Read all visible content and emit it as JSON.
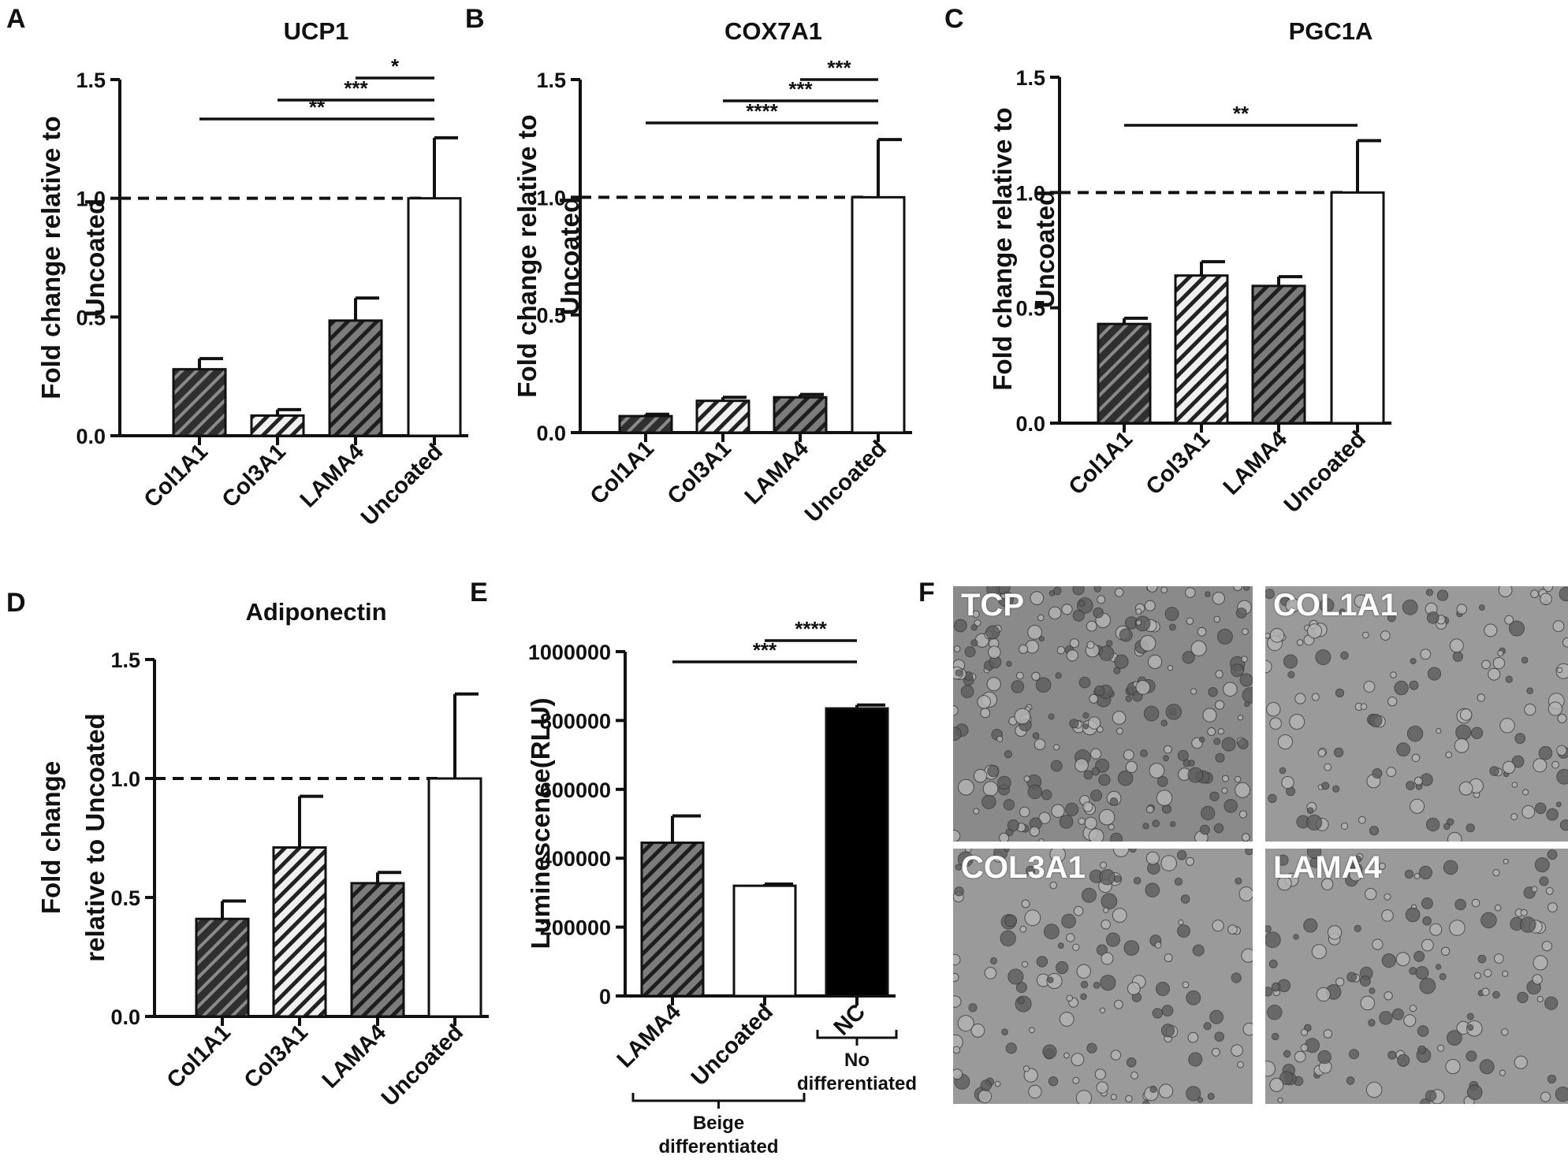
{
  "panel_letters": [
    "A",
    "B",
    "C",
    "D",
    "E",
    "F"
  ],
  "chart_data": [
    {
      "panel": "A",
      "type": "bar",
      "title": "UCP1",
      "ylabel": [
        "Fold  change relative to",
        "Uncoated"
      ],
      "categories": [
        "Col1A1",
        "Col3A1",
        "LAMA4",
        "Uncoated"
      ],
      "values": [
        0.28,
        0.085,
        0.485,
        1.0
      ],
      "errors": [
        0.045,
        0.025,
        0.095,
        0.255
      ],
      "ylim": [
        0,
        1.5
      ],
      "yticks": [
        "0.0",
        "0.5",
        "1.0",
        "1.5"
      ],
      "reference_line": 1.0,
      "significance": [
        {
          "from": 2,
          "to": 3,
          "label": "*"
        },
        {
          "from": 1,
          "to": 3,
          "label": "***"
        },
        {
          "from": 0,
          "to": 3,
          "label": "**"
        }
      ]
    },
    {
      "panel": "B",
      "type": "bar",
      "title": "COX7A1",
      "ylabel": [
        "Fold  change relative to",
        "Uncoated"
      ],
      "categories": [
        "Col1A1",
        "Col3A1",
        "LAMA4",
        "Uncoated"
      ],
      "values": [
        0.07,
        0.135,
        0.15,
        1.0
      ],
      "errors": [
        0.008,
        0.015,
        0.012,
        0.245
      ],
      "ylim": [
        0,
        1.5
      ],
      "yticks": [
        "0.0",
        "0.5",
        "1.0",
        "1.5"
      ],
      "reference_line": 1.0,
      "significance": [
        {
          "from": 2,
          "to": 3,
          "label": "***"
        },
        {
          "from": 1,
          "to": 3,
          "label": "***"
        },
        {
          "from": 0,
          "to": 3,
          "label": "****"
        }
      ]
    },
    {
      "panel": "C",
      "type": "bar",
      "title": "PGC1A",
      "ylabel": [
        "Fold  change relative to",
        "Uncoated"
      ],
      "categories": [
        "Col1A1",
        "Col3A1",
        "LAMA4",
        "Uncoated"
      ],
      "values": [
        0.43,
        0.64,
        0.595,
        1.0
      ],
      "errors": [
        0.025,
        0.06,
        0.04,
        0.225
      ],
      "ylim": [
        0,
        1.5
      ],
      "yticks": [
        "0.0",
        "0.5",
        "1.0",
        "1.5"
      ],
      "reference_line": 1.0,
      "significance": [
        {
          "from": 0,
          "to": 3,
          "label": "**"
        }
      ]
    },
    {
      "panel": "D",
      "type": "bar",
      "title": "Adiponectin",
      "ylabel": [
        "Fold  change",
        "relative to Uncoated"
      ],
      "categories": [
        "Col1A1",
        "Col3A1",
        "LAMA4",
        "Uncoated"
      ],
      "values": [
        0.41,
        0.71,
        0.56,
        1.0
      ],
      "errors": [
        0.075,
        0.215,
        0.045,
        0.355
      ],
      "ylim": [
        0,
        1.5
      ],
      "yticks": [
        "0.0",
        "0.5",
        "1.0",
        "1.5"
      ],
      "reference_line": 1.0,
      "significance": []
    },
    {
      "panel": "E",
      "type": "bar",
      "title": "",
      "ylabel": [
        "Luminescence(RLU)"
      ],
      "categories": [
        "LAMA4",
        "Uncoated",
        "NC"
      ],
      "values": [
        445000,
        320000,
        835000
      ],
      "errors": [
        78000,
        5000,
        10000
      ],
      "ylim": [
        0,
        1000000
      ],
      "yticks": [
        "0",
        "200000",
        "400000",
        "600000",
        "800000",
        "1000000"
      ],
      "significance": [
        {
          "from": 1,
          "to": 2,
          "label": "****"
        },
        {
          "from": 0,
          "to": 2,
          "label": "***"
        }
      ],
      "groups": [
        {
          "label": [
            "Beige",
            "differentiated"
          ],
          "from": 0,
          "to": 1
        },
        {
          "label": [
            "No",
            "differentiated"
          ],
          "from": 2,
          "to": 2
        }
      ]
    }
  ],
  "micrographs": {
    "panel": "F",
    "labels": [
      "TCP",
      "COL1A1",
      "COL3A1",
      "LAMA4"
    ]
  }
}
